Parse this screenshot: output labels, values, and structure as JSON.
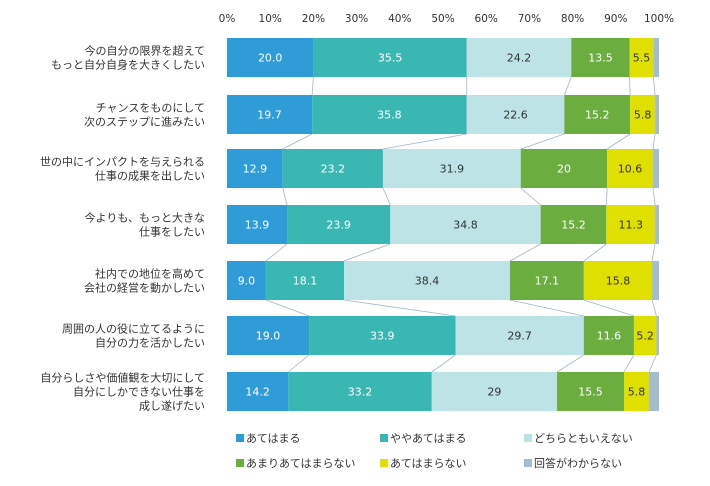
{
  "chart_data": {
    "type": "bar",
    "orientation": "horizontal",
    "stacked": "percent",
    "title": "",
    "xlabel": "",
    "ylabel": "",
    "xlim": [
      0,
      100
    ],
    "x_ticks": [
      "0%",
      "10%",
      "20%",
      "30%",
      "40%",
      "50%",
      "60%",
      "70%",
      "80%",
      "90%",
      "100%"
    ],
    "grid": false,
    "connector_lines": true,
    "legend_position": "bottom",
    "categories": [
      [
        "今の自分の限界を超えて",
        "もっと自分自身を大きくしたい"
      ],
      [
        "チャンスをものにして",
        "次のステップに進みたい"
      ],
      [
        "世の中にインパクトを与えられる",
        "仕事の成果を出したい"
      ],
      [
        "今よりも、もっと大きな",
        "仕事をしたい"
      ],
      [
        "社内での地位を高めて",
        "会社の経営を動かしたい"
      ],
      [
        "周囲の人の役に立てるように",
        "自分の力を活かしたい"
      ],
      [
        "自分らしさや価値観を大切にして",
        "自分にしかできない仕事を",
        "成し遂げたい"
      ]
    ],
    "series": [
      {
        "name": "あてはまる",
        "color": "#2f9cd8",
        "label_color": "#ffffff",
        "values": [
          20.0,
          19.7,
          12.9,
          13.9,
          9.0,
          19.0,
          14.2
        ],
        "labels": [
          "20.0",
          "19.7",
          "12.9",
          "13.9",
          "9.0",
          "19.0",
          "14.2"
        ]
      },
      {
        "name": "ややあてはまる",
        "color": "#3bb7b3",
        "label_color": "#ffffff",
        "values": [
          35.5,
          35.8,
          23.2,
          23.9,
          18.1,
          33.9,
          33.2
        ],
        "labels": [
          "35.5",
          "35.8",
          "23.2",
          "23.9",
          "18.1",
          "33.9",
          "33.2"
        ]
      },
      {
        "name": "どちらともいえない",
        "color": "#bde3e6",
        "label_color": "#333333",
        "values": [
          24.2,
          22.6,
          31.9,
          34.8,
          38.4,
          29.7,
          29
        ],
        "labels": [
          "24.2",
          "22.6",
          "31.9",
          "34.8",
          "38.4",
          "29.7",
          "29"
        ]
      },
      {
        "name": "あまりあてはまらない",
        "color": "#6cad3f",
        "label_color": "#ffffff",
        "values": [
          13.5,
          15.2,
          20,
          15.2,
          17.1,
          11.6,
          15.5
        ],
        "labels": [
          "13.5",
          "15.2",
          "20",
          "15.2",
          "17.1",
          "11.6",
          "15.5"
        ]
      },
      {
        "name": "あてはまらない",
        "color": "#dfe000",
        "label_color": "#333333",
        "values": [
          5.5,
          5.8,
          10.6,
          11.3,
          15.8,
          5.2,
          5.8
        ],
        "labels": [
          "5.5",
          "5.8",
          "10.6",
          "11.3",
          "15.8",
          "5.2",
          "5.8"
        ]
      },
      {
        "name": "回答がわからない",
        "color": "#a3bccf",
        "label_color": "#333333",
        "values": [
          1.3,
          0.9,
          1.4,
          0.9,
          1.6,
          0.6,
          2.3
        ],
        "labels": [
          "",
          "",
          "",
          "",
          "",
          "",
          ""
        ]
      }
    ]
  }
}
